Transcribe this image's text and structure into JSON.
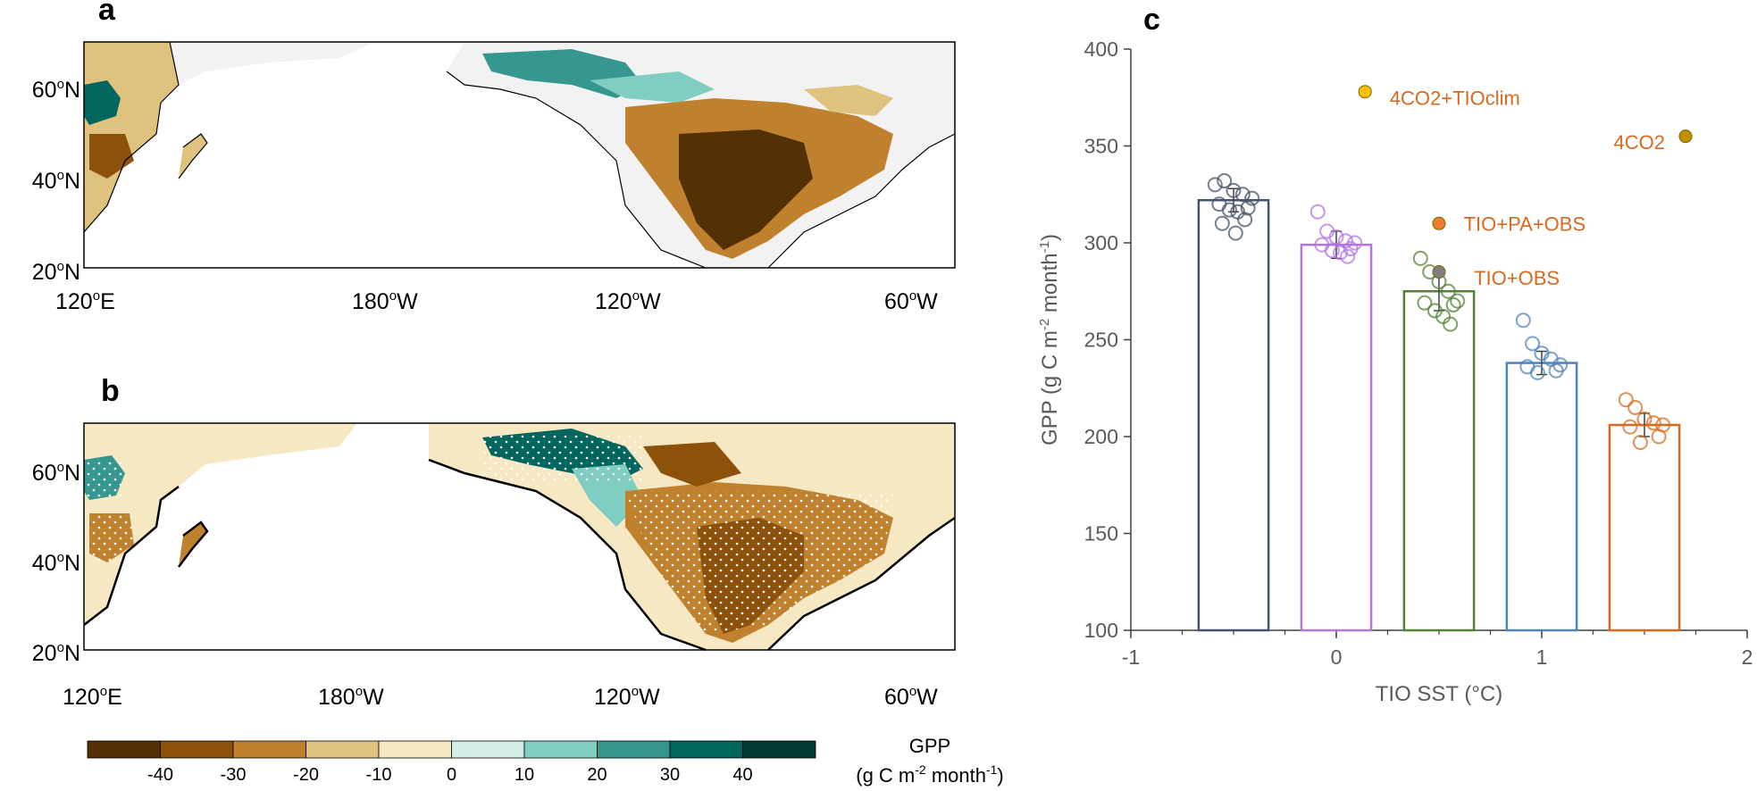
{
  "figure": {
    "panel_a": {
      "label": "a",
      "lat_labels": [
        "60",
        "40",
        "20"
      ],
      "lon_labels": [
        "120",
        "180",
        "120",
        "60"
      ],
      "lat_suffix": "N",
      "lon_suffixes": [
        "E",
        "W",
        "W",
        "W"
      ],
      "degree_mark": "o"
    },
    "panel_b": {
      "label": "b",
      "lat_labels": [
        "60",
        "40",
        "20"
      ],
      "lon_labels": [
        "120",
        "180",
        "120",
        "60"
      ],
      "lat_suffix": "N",
      "lon_suffixes": [
        "E",
        "W",
        "W",
        "W"
      ],
      "degree_mark": "o"
    },
    "colorbar": {
      "ticks": [
        "-40",
        "-30",
        "-20",
        "-10",
        "0",
        "10",
        "20",
        "30",
        "40"
      ],
      "colors": [
        "#543005",
        "#8c510a",
        "#bf812d",
        "#dfc27d",
        "#f6e8c3",
        "#d4ece7",
        "#80cdc1",
        "#35978f",
        "#01665e",
        "#003c30"
      ],
      "title_line1": "GPP",
      "title_line2_prefix": "(g C m",
      "title_line2_sup1": "-2",
      "title_line2_mid": " month",
      "title_line2_sup2": "-1",
      "title_line2_suffix": ")"
    },
    "panel_c": {
      "label": "c"
    }
  },
  "chart_data": [
    {
      "id": "panel_c",
      "type": "bar",
      "title": "",
      "xlabel": "TIO SST (°C)",
      "ylabel_prefix": "GPP (g C m",
      "ylabel_sup1": "-2",
      "ylabel_mid": " month",
      "ylabel_sup2": "-1",
      "ylabel_suffix": ")",
      "xlim": [
        -1,
        2
      ],
      "ylim": [
        100,
        400
      ],
      "x_ticks": [
        -1,
        0,
        1,
        2
      ],
      "y_ticks": [
        100,
        150,
        200,
        250,
        300,
        350,
        400
      ],
      "x_tick_labels": [
        "-1",
        "0",
        "1",
        "2"
      ],
      "y_tick_labels": [
        "100",
        "150",
        "200",
        "250",
        "300",
        "350",
        "400"
      ],
      "grid": false,
      "bars": [
        {
          "x": -0.5,
          "value": 322,
          "error": 6,
          "color": "#44546a",
          "points": [
            330,
            332,
            327,
            325,
            323,
            320,
            318,
            317,
            316,
            312,
            310,
            305
          ]
        },
        {
          "x": 0.0,
          "value": 299,
          "error": 7,
          "color": "#b175e0",
          "points": [
            316,
            306,
            303,
            301,
            300,
            299,
            297,
            296,
            295,
            293
          ]
        },
        {
          "x": 0.5,
          "value": 275,
          "error": 10,
          "color": "#548235",
          "points": [
            292,
            285,
            280,
            275,
            270,
            269,
            268,
            265,
            262,
            258
          ]
        },
        {
          "x": 1.0,
          "value": 238,
          "error": 6,
          "color": "#4f81bd",
          "points": [
            260,
            248,
            243,
            240,
            237,
            236,
            234,
            233
          ]
        },
        {
          "x": 1.5,
          "value": 206,
          "error": 6,
          "color": "#d8691f",
          "points": [
            219,
            215,
            209,
            207,
            206,
            205,
            200,
            197
          ]
        }
      ],
      "markers": [
        {
          "name": "4CO2+TIOclim",
          "x": 0.14,
          "y": 378,
          "color": "#ffc000",
          "label_dx": 0.12,
          "label_dy": -3,
          "anchor": "start"
        },
        {
          "name": "4CO2",
          "x": 1.7,
          "y": 355,
          "color": "#bf9000",
          "label_dx": -0.1,
          "label_dy": -3,
          "anchor": "end"
        },
        {
          "name": "TIO+PA+OBS",
          "x": 0.5,
          "y": 310,
          "color": "#ed7d31",
          "label_dx": 0.12,
          "label_dy": 0,
          "anchor": "start"
        },
        {
          "name": "TIO+OBS",
          "x": 0.5,
          "y": 285,
          "color": "#7f7f7f",
          "label_dx": 0.17,
          "label_dy": -3,
          "anchor": "start"
        }
      ]
    }
  ]
}
